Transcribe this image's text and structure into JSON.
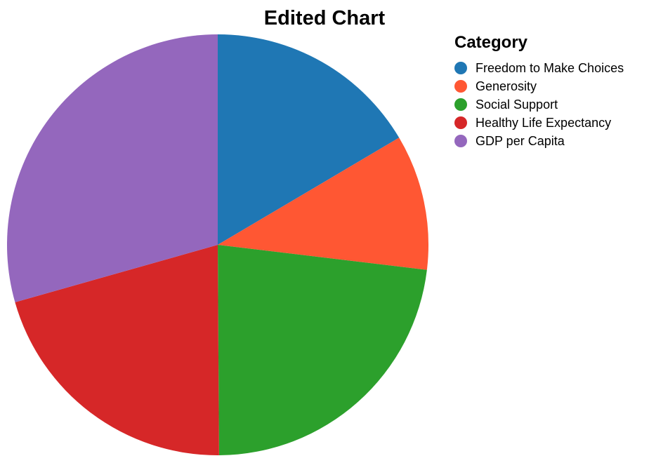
{
  "chart_data": {
    "type": "pie",
    "title": "Edited Chart",
    "legend_title": "Category",
    "legend_position": "top-right",
    "categories": [
      "Freedom to Make Choices",
      "Generosity",
      "Social Support",
      "Healthy Life Expectancy",
      "GDP per Capita"
    ],
    "values": [
      16.5,
      10.4,
      23.0,
      20.7,
      29.4
    ],
    "colors": [
      "#1f77b4",
      "#ff5733",
      "#2ca02c",
      "#d62728",
      "#9467bd"
    ]
  }
}
